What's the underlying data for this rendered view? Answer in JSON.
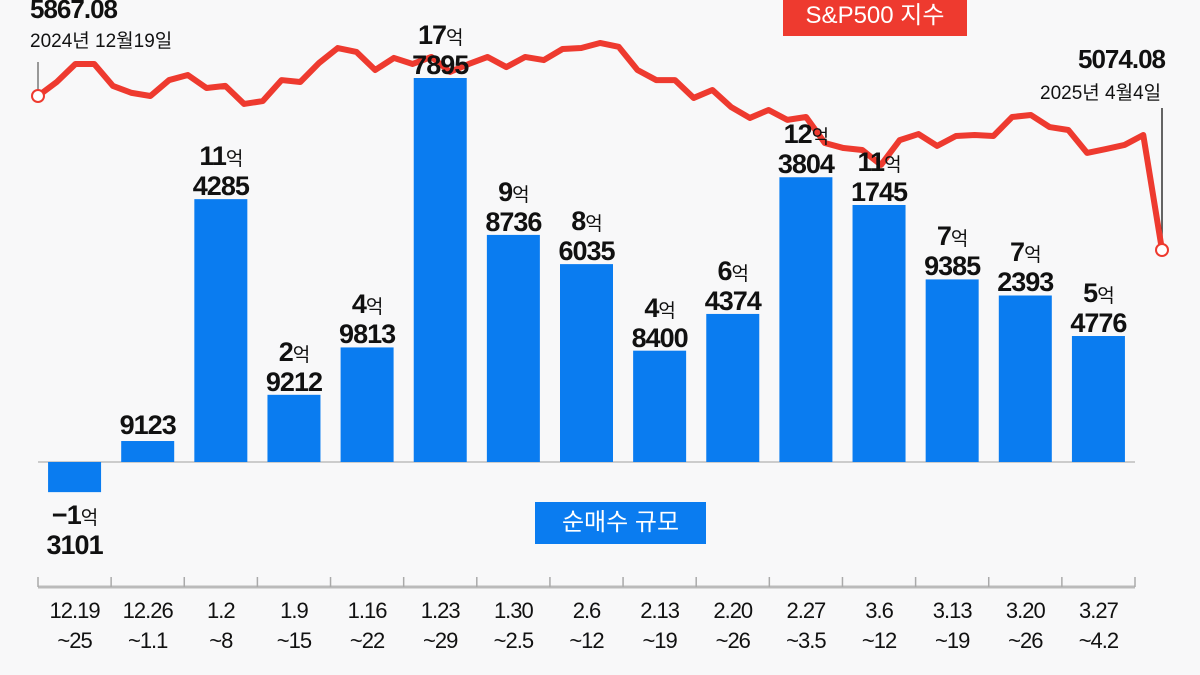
{
  "chart_data": {
    "type": "bar+line",
    "categories": [
      "12.19~25",
      "12.26~1.1",
      "1.2~8",
      "1.9~15",
      "1.16~22",
      "1.23~29",
      "1.30~2.5",
      "2.6~12",
      "2.13~19",
      "2.20~26",
      "2.27~3.5",
      "3.6~12",
      "3.13~19",
      "3.20~26",
      "3.27~4.2"
    ],
    "category_lines": [
      [
        "12.19",
        "~25"
      ],
      [
        "12.26",
        "~1.1"
      ],
      [
        "1.2",
        "~8"
      ],
      [
        "1.9",
        "~15"
      ],
      [
        "1.16",
        "~22"
      ],
      [
        "1.23",
        "~29"
      ],
      [
        "1.30",
        "~2.5"
      ],
      [
        "2.6",
        "~12"
      ],
      [
        "2.13",
        "~19"
      ],
      [
        "2.20",
        "~26"
      ],
      [
        "2.27",
        "~3.5"
      ],
      [
        "3.6",
        "~12"
      ],
      [
        "3.13",
        "~19"
      ],
      [
        "3.20",
        "~26"
      ],
      [
        "3.27",
        "~4.2"
      ]
    ],
    "bar_series": {
      "name": "순매수 규모",
      "values": [
        -1.3101,
        0.9123,
        11.4285,
        2.9212,
        4.9813,
        17.7895,
        9.8736,
        8.6035,
        4.84,
        6.4374,
        12.3804,
        11.1745,
        7.9385,
        7.2393,
        5.4776
      ],
      "labels": [
        [
          "−1억",
          "3101"
        ],
        [
          "",
          "9123"
        ],
        [
          "11억",
          "4285"
        ],
        [
          "2억",
          "9212"
        ],
        [
          "4억",
          "9813"
        ],
        [
          "17억",
          "7895"
        ],
        [
          "9억",
          "8736"
        ],
        [
          "8억",
          "6035"
        ],
        [
          "4억",
          "8400"
        ],
        [
          "6억",
          "4374"
        ],
        [
          "12억",
          "3804"
        ],
        [
          "11억",
          "1745"
        ],
        [
          "7억",
          "9385"
        ],
        [
          "7억",
          "2393"
        ],
        [
          "5억",
          "4776"
        ]
      ],
      "color": "#0a7cf0"
    },
    "line_series": {
      "name": "S&P500 지수",
      "color": "#ee3a2f",
      "values": [
        5867,
        5939,
        6032,
        6032,
        5919,
        5883,
        5867,
        5949,
        5975,
        5908,
        5919,
        5826,
        5841,
        5949,
        5939,
        6037,
        6114,
        6094,
        6001,
        6063,
        6032,
        6068,
        5991,
        6032,
        6068,
        6016,
        6068,
        6052,
        6109,
        6114,
        6140,
        6120,
        6001,
        5949,
        5949,
        5857,
        5898,
        5810,
        5754,
        5795,
        5744,
        5759,
        5625,
        5599,
        5589,
        5512,
        5640,
        5671,
        5610,
        5661,
        5666,
        5661,
        5759,
        5769,
        5707,
        5692,
        5574,
        5594,
        5615,
        5666,
        5074
      ],
      "start": {
        "value": "5867.08",
        "date": "2024년 12월19일"
      },
      "end": {
        "value": "5074.08",
        "date": "2025년 4월4일"
      }
    },
    "grid": false,
    "legend": [
      "S&P500 지수",
      "순매수 규모"
    ]
  }
}
